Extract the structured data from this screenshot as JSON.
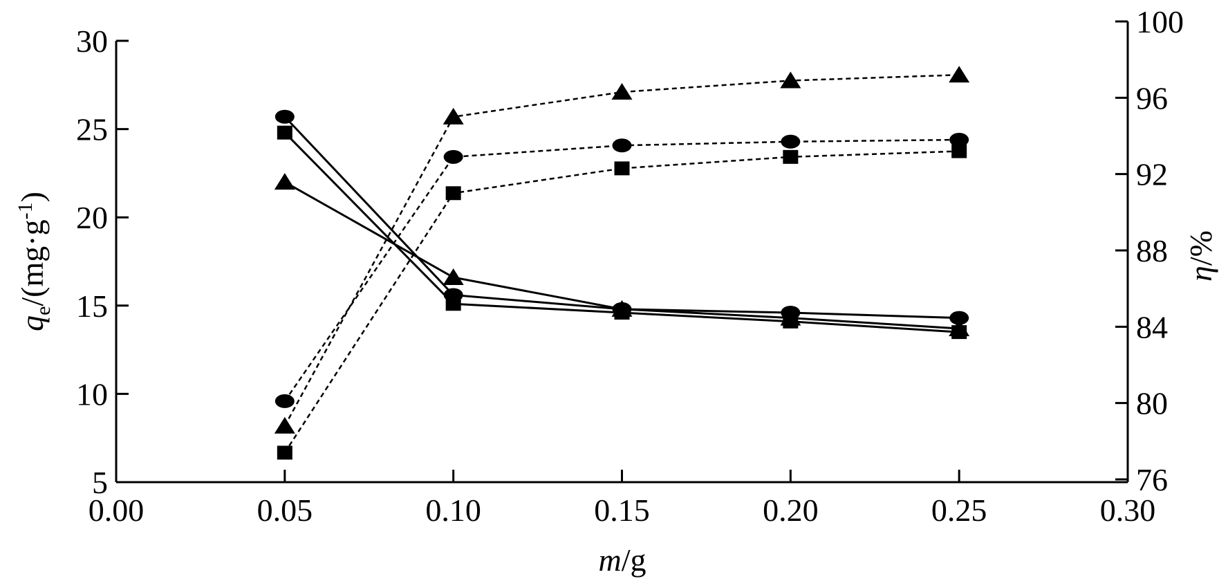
{
  "chart_data": {
    "type": "line",
    "x_label": [
      "m",
      "/g"
    ],
    "y_label": [
      "q",
      "e",
      "/(mg·g",
      "-1",
      ")"
    ],
    "y2_label": [
      "η",
      "/%"
    ],
    "x": [
      0.05,
      0.1,
      0.15,
      0.2,
      0.25
    ],
    "xlim": [
      0,
      0.3
    ],
    "xticks": [
      {
        "value": 0,
        "label": "0.00"
      },
      {
        "value": 0.05,
        "label": "0.05"
      },
      {
        "value": 0.1,
        "label": "0.10"
      },
      {
        "value": 0.15,
        "label": "0.15"
      },
      {
        "value": 0.2,
        "label": "0.20"
      },
      {
        "value": 0.25,
        "label": "0.25"
      },
      {
        "value": 0.3,
        "label": "0.30"
      }
    ],
    "ylim": [
      5,
      30
    ],
    "yticks": [
      5,
      10,
      15,
      20,
      25,
      30
    ],
    "y2lim": [
      76,
      100
    ],
    "y2ticks": [
      76,
      80,
      84,
      88,
      92,
      96,
      100
    ],
    "series": [
      {
        "color": "#000000",
        "marker": "square",
        "dash": false,
        "values": [
          24.8,
          15.1,
          14.6,
          14.1,
          13.5
        ]
      },
      {
        "color": "#000000",
        "marker": "circle",
        "dash": false,
        "values": [
          25.7,
          15.6,
          14.8,
          14.6,
          14.3
        ]
      },
      {
        "color": "#000000",
        "marker": "triangle",
        "dash": false,
        "values": [
          22.0,
          16.6,
          14.8,
          14.3,
          13.7
        ]
      },
      {
        "color": "#000000",
        "marker": "square",
        "dash": true,
        "axis": "y2",
        "values": [
          77.4,
          91.0,
          92.3,
          92.9,
          93.2
        ]
      },
      {
        "color": "#000000",
        "marker": "circle",
        "dash": true,
        "axis": "y2",
        "values": [
          80.1,
          92.9,
          93.5,
          93.7,
          93.8
        ]
      },
      {
        "color": "#000000",
        "marker": "triangle",
        "dash": true,
        "axis": "y2",
        "values": [
          78.8,
          95.0,
          96.3,
          96.9,
          97.2
        ]
      }
    ]
  }
}
